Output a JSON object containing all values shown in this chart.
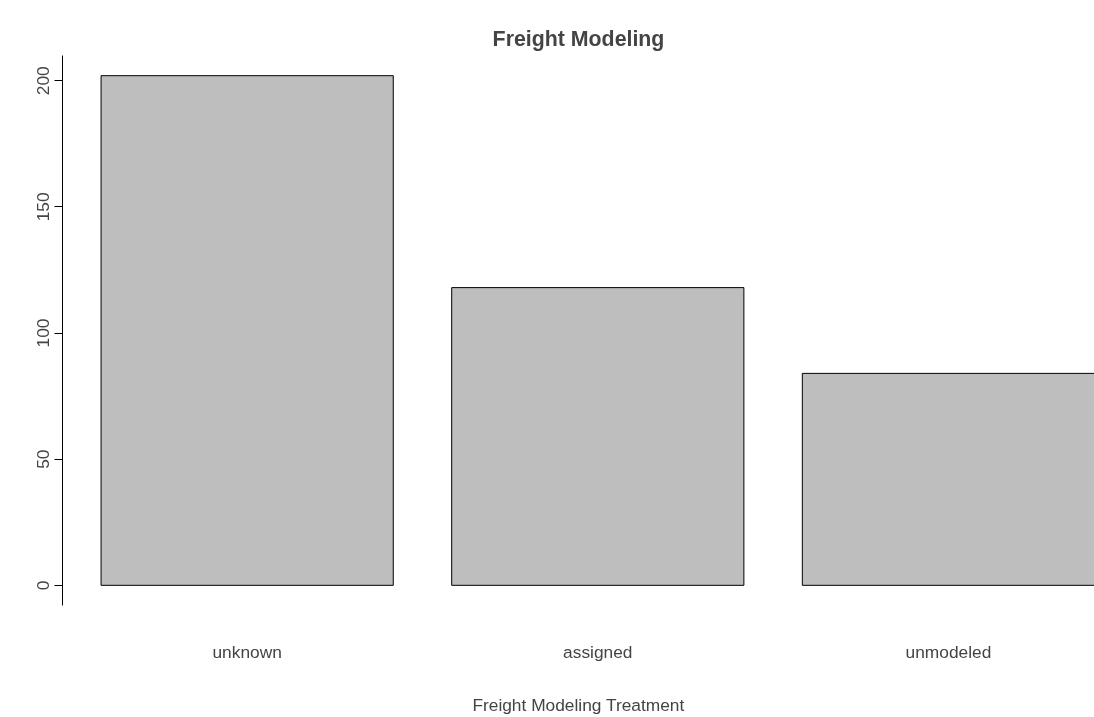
{
  "chart_data": {
    "type": "bar",
    "title": "Freight Modeling",
    "xlabel": "Freight Modeling Treatment",
    "categories": [
      "unknown",
      "assigned",
      "unmodeled"
    ],
    "values": [
      202,
      118,
      84
    ],
    "color": "#bebebe",
    "ylim": [
      -8,
      210
    ],
    "yticks": [
      0,
      50,
      100,
      150,
      200
    ],
    "grid": false
  }
}
